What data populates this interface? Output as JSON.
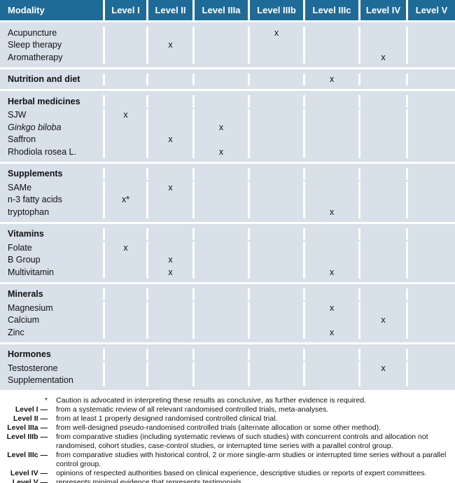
{
  "header": [
    "Modality",
    "Level I",
    "Level II",
    "Level IIIa",
    "Level IIIb",
    "Level IIIc",
    "Level IV",
    "Level V"
  ],
  "groups": [
    {
      "rows": [
        {
          "label": "Acupuncture",
          "marks": [
            "",
            "",
            "",
            "x",
            "",
            "",
            ""
          ]
        },
        {
          "label": "Sleep therapy",
          "marks": [
            "",
            "x",
            "",
            "",
            "",
            "",
            ""
          ]
        },
        {
          "label": "Aromatherapy",
          "marks": [
            "",
            "",
            "",
            "",
            "",
            "x",
            ""
          ]
        }
      ]
    },
    {
      "rows": [
        {
          "label": "Nutrition and diet",
          "bold": true,
          "marks": [
            "",
            "",
            "",
            "",
            "x",
            "",
            ""
          ]
        }
      ]
    },
    {
      "rows": [
        {
          "label": "Herbal medicines",
          "bold": true,
          "head": true,
          "marks": [
            "",
            "",
            "",
            "",
            "",
            "",
            ""
          ]
        },
        {
          "label": "SJW",
          "marks": [
            "x",
            "",
            "",
            "",
            "",
            "",
            ""
          ]
        },
        {
          "label": "Ginkgo biloba",
          "italic": true,
          "marks": [
            "",
            "",
            "x",
            "",
            "",
            "",
            ""
          ]
        },
        {
          "label": "Saffron",
          "marks": [
            "",
            "x",
            "",
            "",
            "",
            "",
            ""
          ]
        },
        {
          "label": "Rhodiola rosea L.",
          "marks": [
            "",
            "",
            "x",
            "",
            "",
            "",
            ""
          ]
        }
      ]
    },
    {
      "rows": [
        {
          "label": "Supplements",
          "bold": true,
          "head": true,
          "marks": [
            "",
            "",
            "",
            "",
            "",
            "",
            ""
          ]
        },
        {
          "label": "SAMe",
          "marks": [
            "",
            "x",
            "",
            "",
            "",
            "",
            ""
          ]
        },
        {
          "label": "n-3 fatty acids",
          "marks": [
            "x*",
            "",
            "",
            "",
            "",
            "",
            ""
          ]
        },
        {
          "label": "tryptophan",
          "marks": [
            "",
            "",
            "",
            "",
            "x",
            "",
            ""
          ]
        }
      ]
    },
    {
      "rows": [
        {
          "label": "Vitamins",
          "bold": true,
          "head": true,
          "marks": [
            "",
            "",
            "",
            "",
            "",
            "",
            ""
          ]
        },
        {
          "label": "Folate",
          "marks": [
            "x",
            "",
            "",
            "",
            "",
            "",
            ""
          ]
        },
        {
          "label": "B Group",
          "marks": [
            "",
            "x",
            "",
            "",
            "",
            "",
            ""
          ]
        },
        {
          "label": "Multivitamin",
          "marks": [
            "",
            "x",
            "",
            "",
            "x",
            "",
            ""
          ]
        }
      ]
    },
    {
      "rows": [
        {
          "label": "Minerals",
          "bold": true,
          "head": true,
          "marks": [
            "",
            "",
            "",
            "",
            "",
            "",
            ""
          ]
        },
        {
          "label": "Magnesium",
          "marks": [
            "",
            "",
            "",
            "",
            "x",
            "",
            ""
          ]
        },
        {
          "label": "Calcium",
          "marks": [
            "",
            "",
            "",
            "",
            "",
            "x",
            ""
          ]
        },
        {
          "label": "Zinc",
          "marks": [
            "",
            "",
            "",
            "",
            "x",
            "",
            ""
          ]
        }
      ]
    },
    {
      "rows": [
        {
          "label": "Hormones",
          "bold": true,
          "head": true,
          "marks": [
            "",
            "",
            "",
            "",
            "",
            "",
            ""
          ]
        },
        {
          "label": "Testosterone",
          "marks": [
            "",
            "",
            "",
            "",
            "",
            "x",
            ""
          ]
        },
        {
          "label": "Supplementation",
          "marks": [
            "",
            "",
            "",
            "",
            "",
            "",
            ""
          ]
        }
      ]
    }
  ],
  "notes": [
    {
      "key": "*",
      "text": "Caution is advocated in interpreting these results as conclusive, as further evidence is required."
    },
    {
      "key": "Level I —",
      "text": "from a systematic review of all relevant randomised controlled trials, meta-analyses."
    },
    {
      "key": "Level II —",
      "text": "from at least 1 properly designed randomised controlled clinical trial."
    },
    {
      "key": "Level IIIa —",
      "text": "from well-designed pseudo-randomised controlled trials (alternate allocation or some other method)."
    },
    {
      "key": "Level IIIb —",
      "text": "from comparative studies (including systematic reviews of such studies) with concurrent controls and allocation not randomised, cohort studies, case-control studies, or interrupted time series with a parallel control group."
    },
    {
      "key": "Level IIIc —",
      "text": "from comparative studies with historical control, 2 or more single-arm studies or interrupted time series without a parallel control group."
    },
    {
      "key": "Level IV —",
      "text": "opinions of respected authorities based on clinical experience, descriptive studies or reports of expert committees."
    },
    {
      "key": "Level V —",
      "text": "represents minimal evidence that represents testimonials."
    }
  ]
}
